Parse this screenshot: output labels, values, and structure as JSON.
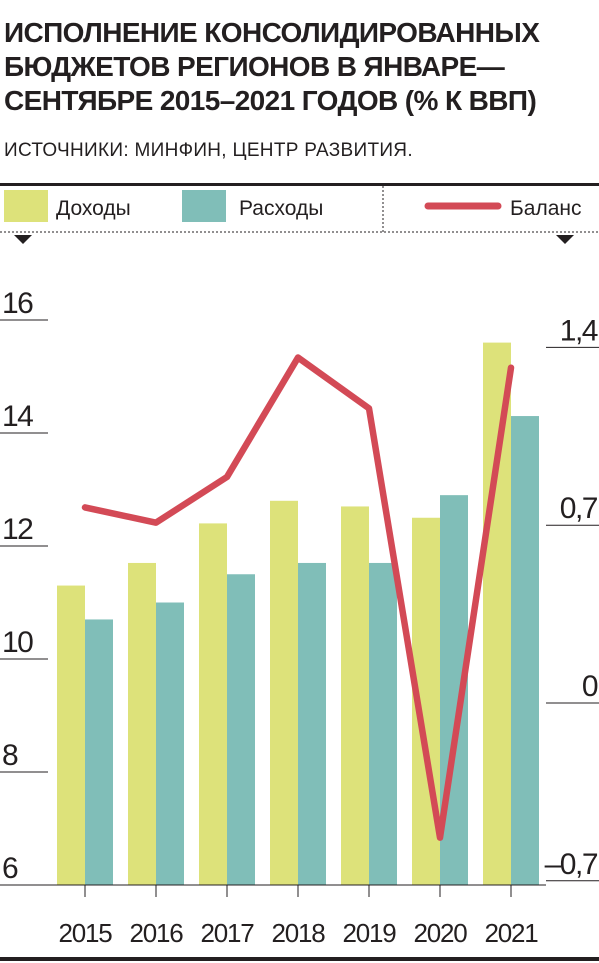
{
  "header": {
    "title_lines": [
      "ИСПОЛНЕНИЕ КОНСОЛИДИРОВАННЫХ",
      "БЮДЖЕТОВ РЕГИОНОВ В ЯНВАРЕ—",
      "СЕНТЯБРЕ 2015–2021 ГОДОВ (% К ВВП)"
    ],
    "source": "ИСТОЧНИКИ: МИНФИН, ЦЕНТР РАЗВИТИЯ."
  },
  "colors": {
    "income": "#dde27a",
    "expenses": "#80beb8",
    "balance": "#d34a56",
    "ink": "#231f20"
  },
  "chart_data": {
    "type": "bar",
    "categories": [
      "2015",
      "2016",
      "2017",
      "2018",
      "2019",
      "2020",
      "2021"
    ],
    "series": [
      {
        "name": "Доходы",
        "type": "bar",
        "axis": "left",
        "values": [
          11.3,
          11.7,
          12.4,
          12.8,
          12.7,
          12.5,
          15.6
        ]
      },
      {
        "name": "Расходы",
        "type": "bar",
        "axis": "left",
        "values": [
          10.7,
          11.0,
          11.5,
          11.7,
          11.7,
          12.9,
          14.3
        ]
      },
      {
        "name": "Баланс",
        "type": "line",
        "axis": "right",
        "values": [
          0.77,
          0.71,
          0.89,
          1.36,
          1.16,
          -0.53,
          1.32
        ]
      }
    ],
    "y_left": {
      "ticks": [
        "16",
        "14",
        "12",
        "10",
        "8",
        "6"
      ],
      "min": 6,
      "max": 16
    },
    "y_right": {
      "ticks": [
        "1,4",
        "0,7",
        "0",
        "–0,7"
      ],
      "min": -0.7,
      "max": 1.4
    },
    "legend_placement": "top",
    "grid": false
  }
}
